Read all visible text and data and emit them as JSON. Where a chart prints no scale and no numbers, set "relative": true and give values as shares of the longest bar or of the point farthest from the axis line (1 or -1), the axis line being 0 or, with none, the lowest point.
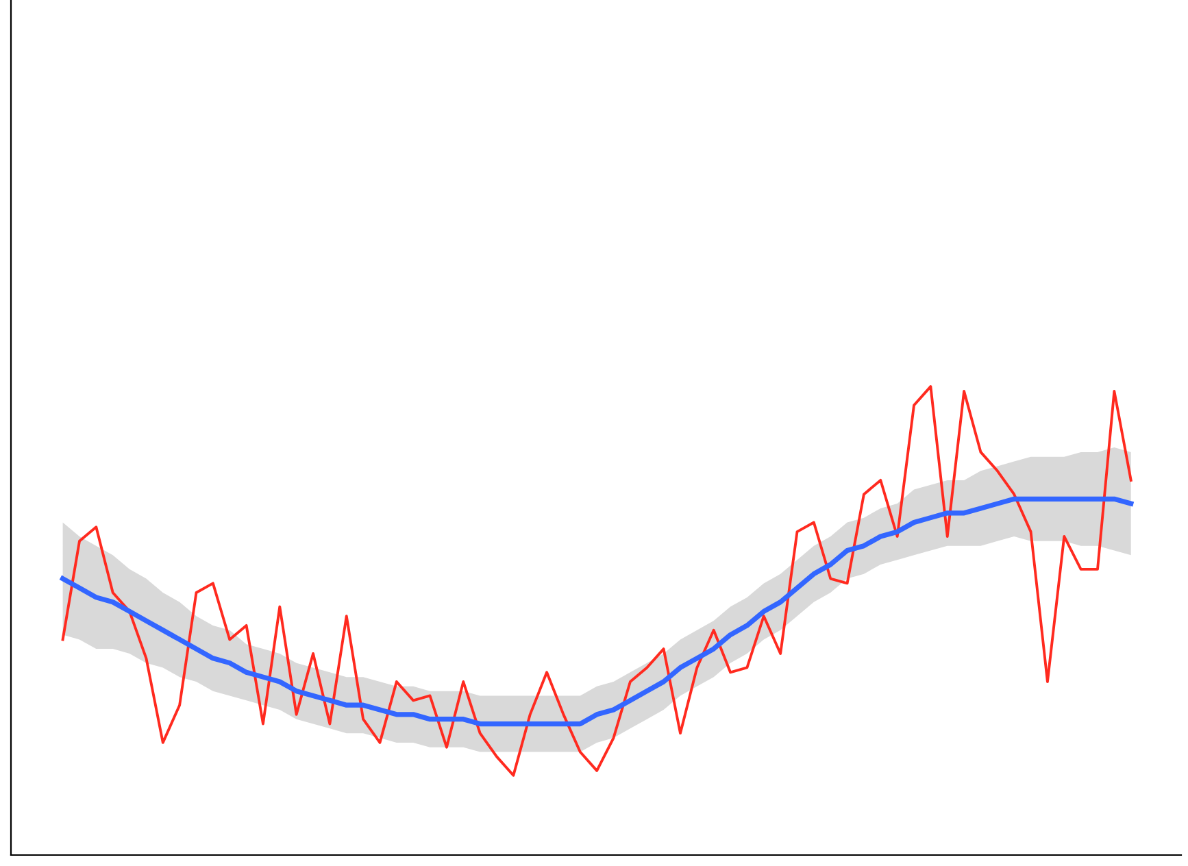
{
  "chart_data": {
    "type": "line",
    "relative": true,
    "legend": false,
    "marker": "none",
    "line_style": "solid",
    "categories": [
      null,
      null,
      null,
      null,
      null,
      null,
      null,
      null,
      null,
      null,
      null,
      null,
      null,
      null,
      null,
      null,
      null,
      null,
      null,
      null,
      null,
      null,
      null,
      null,
      null,
      null,
      null,
      null,
      null,
      null,
      null,
      null,
      null,
      null,
      null,
      null,
      null,
      null,
      null,
      null,
      null,
      null,
      null,
      null,
      null,
      null,
      null,
      null,
      null,
      null,
      null,
      null,
      null,
      null,
      null,
      null,
      null,
      null,
      null,
      null,
      null,
      null,
      null,
      null,
      null
    ],
    "series": [
      {
        "color": "#ff2a1f",
        "values": [
          0.46,
          0.67,
          0.7,
          0.56,
          0.52,
          0.42,
          0.24,
          0.32,
          0.56,
          0.58,
          0.46,
          0.49,
          0.28,
          0.53,
          0.3,
          0.43,
          0.28,
          0.51,
          0.29,
          0.24,
          0.37,
          0.33,
          0.34,
          0.23,
          0.37,
          0.26,
          0.21,
          0.17,
          0.3,
          0.39,
          0.3,
          0.22,
          0.18,
          0.25,
          0.37,
          0.4,
          0.44,
          0.26,
          0.4,
          0.48,
          0.39,
          0.4,
          0.51,
          0.43,
          0.69,
          0.71,
          0.59,
          0.58,
          0.77,
          0.8,
          0.68,
          0.96,
          1,
          0.68,
          0.99,
          0.86,
          0.82,
          0.77,
          0.69,
          0.37,
          0.68,
          0.61,
          0.61,
          0.99,
          0.8
        ]
      },
      {
        "color": "#3366ff",
        "values": [
          0.59,
          0.57,
          0.55,
          0.54,
          0.52,
          0.5,
          0.48,
          0.46,
          0.44,
          0.42,
          0.41,
          0.39,
          0.38,
          0.37,
          0.35,
          0.34,
          0.33,
          0.32,
          0.32,
          0.31,
          0.3,
          0.3,
          0.29,
          0.29,
          0.29,
          0.28,
          0.28,
          0.28,
          0.28,
          0.28,
          0.28,
          0.28,
          0.3,
          0.31,
          0.33,
          0.35,
          0.37,
          0.4,
          0.42,
          0.44,
          0.47,
          0.49,
          0.52,
          0.54,
          0.57,
          0.6,
          0.62,
          0.65,
          0.66,
          0.68,
          0.69,
          0.71,
          0.72,
          0.73,
          0.73,
          0.74,
          0.75,
          0.76,
          0.76,
          0.76,
          0.76,
          0.76,
          0.76,
          0.76,
          0.75
        ],
        "lower": [
          0.47,
          0.46,
          0.44,
          0.44,
          0.43,
          0.41,
          0.4,
          0.38,
          0.37,
          0.35,
          0.34,
          0.33,
          0.32,
          0.31,
          0.29,
          0.28,
          0.27,
          0.26,
          0.26,
          0.25,
          0.24,
          0.24,
          0.23,
          0.23,
          0.23,
          0.22,
          0.22,
          0.22,
          0.22,
          0.22,
          0.22,
          0.22,
          0.24,
          0.25,
          0.27,
          0.29,
          0.31,
          0.34,
          0.36,
          0.38,
          0.41,
          0.43,
          0.46,
          0.48,
          0.51,
          0.54,
          0.56,
          0.59,
          0.6,
          0.62,
          0.63,
          0.64,
          0.65,
          0.66,
          0.66,
          0.66,
          0.67,
          0.68,
          0.67,
          0.67,
          0.67,
          0.66,
          0.66,
          0.65,
          0.64
        ],
        "upper": [
          0.71,
          0.68,
          0.66,
          0.64,
          0.61,
          0.59,
          0.56,
          0.54,
          0.51,
          0.49,
          0.48,
          0.45,
          0.44,
          0.43,
          0.41,
          0.4,
          0.39,
          0.38,
          0.38,
          0.37,
          0.36,
          0.36,
          0.35,
          0.35,
          0.35,
          0.34,
          0.34,
          0.34,
          0.34,
          0.34,
          0.34,
          0.34,
          0.36,
          0.37,
          0.39,
          0.41,
          0.43,
          0.46,
          0.48,
          0.5,
          0.53,
          0.55,
          0.58,
          0.6,
          0.63,
          0.66,
          0.68,
          0.71,
          0.72,
          0.74,
          0.75,
          0.78,
          0.79,
          0.8,
          0.8,
          0.82,
          0.83,
          0.84,
          0.85,
          0.85,
          0.85,
          0.86,
          0.86,
          0.87,
          0.86
        ]
      }
    ]
  }
}
